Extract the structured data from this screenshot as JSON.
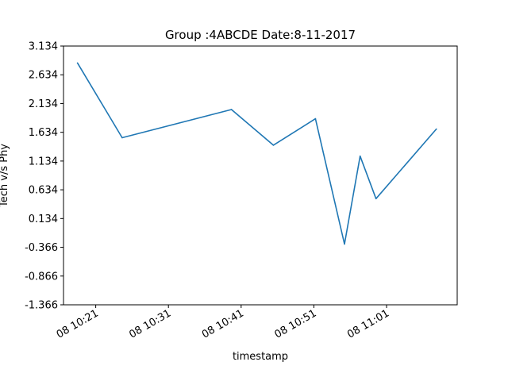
{
  "chart_data": {
    "type": "line",
    "title": "Group :4ABCDE Date:8-11-2017",
    "xlabel": "timestamp",
    "ylabel": "Tech v/s Phy",
    "x_tick_labels": [
      "08 10:21",
      "08 10:31",
      "08 10:41",
      "08 10:51",
      "08 11:01"
    ],
    "y_tick_labels": [
      "-1.366",
      "-0.866",
      "-0.366",
      "0.134",
      "0.634",
      "1.134",
      "1.634",
      "2.134",
      "2.634",
      "3.134"
    ],
    "y_ticks": [
      -1.366,
      -0.866,
      -0.366,
      0.134,
      0.634,
      1.134,
      1.634,
      2.134,
      2.634,
      3.134
    ],
    "ylim": [
      -1.366,
      3.134
    ],
    "xlim": [
      "2017-11-08 10:16:34",
      "2017-11-08 11:10:43"
    ],
    "grid": false,
    "series": [
      {
        "color": "#1f77b4",
        "x": [
          "2017-11-08 10:18:29",
          "2017-11-08 10:24:38",
          "2017-11-08 10:39:40",
          "2017-11-08 10:45:26",
          "2017-11-08 10:51:13",
          "2017-11-08 10:55:13",
          "2017-11-08 10:57:22",
          "2017-11-08 10:59:33",
          "2017-11-08 11:07:51"
        ],
        "values": [
          2.84,
          1.54,
          2.03,
          1.41,
          1.87,
          -0.31,
          1.22,
          0.48,
          1.69
        ]
      }
    ]
  }
}
